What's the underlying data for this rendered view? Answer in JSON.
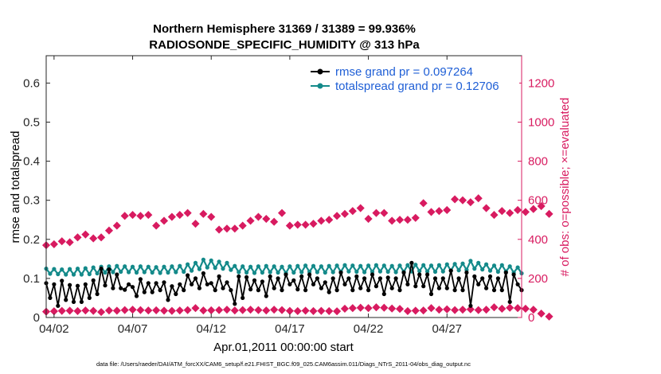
{
  "colors": {
    "rmse": "#000000",
    "spread": "#148a8a",
    "obs": "#d81b60",
    "legend_text": "#1f5fd6",
    "axis": "#262626",
    "grid": "#e8e8e8"
  },
  "chart_data": {
    "type": "line",
    "title_line1": "Northern Hemisphere 31369 / 31389 = 99.936%",
    "title_line2": "RADIOSONDE_SPECIFIC_HUMIDITY @ 313 hPa",
    "xlabel": "Apr.01,2011 00:00:00 start",
    "ylabel_left": "rmse and totalspread",
    "ylabel_right": "# of obs: o=possible; ×=evaluated",
    "footer": "data file: /Users/raeder/DAI/ATM_forcXX/CAM6_setup/f.e21.FHIST_BGC.f09_025.CAM6assim.011/Diags_NTrS_2011-04/obs_diag_output.nc",
    "x_range_days": [
      0.5,
      30.75
    ],
    "ylim_left": [
      0,
      0.67
    ],
    "ylim_right": [
      0,
      1340
    ],
    "x_ticks": [
      {
        "day": 1.0,
        "label": "04/02"
      },
      {
        "day": 6.0,
        "label": "04/07"
      },
      {
        "day": 11.0,
        "label": "04/12"
      },
      {
        "day": 16.0,
        "label": "04/17"
      },
      {
        "day": 21.0,
        "label": "04/22"
      },
      {
        "day": 26.0,
        "label": "04/27"
      }
    ],
    "y_ticks_left": [
      {
        "v": 0,
        "label": "0"
      },
      {
        "v": 0.1,
        "label": "0.1"
      },
      {
        "v": 0.2,
        "label": "0.2"
      },
      {
        "v": 0.3,
        "label": "0.3"
      },
      {
        "v": 0.4,
        "label": "0.4"
      },
      {
        "v": 0.5,
        "label": "0.5"
      },
      {
        "v": 0.6,
        "label": "0.6"
      }
    ],
    "y_ticks_right": [
      {
        "v": 0,
        "label": "0"
      },
      {
        "v": 200,
        "label": "200"
      },
      {
        "v": 400,
        "label": "400"
      },
      {
        "v": 600,
        "label": "600"
      },
      {
        "v": 800,
        "label": "800"
      },
      {
        "v": 1000,
        "label": "1000"
      },
      {
        "v": 1200,
        "label": "1200"
      }
    ],
    "series": [
      {
        "name": "rmse grand pr = 0.097264",
        "axis": "left",
        "x_start": 0.5,
        "x_step": 0.25,
        "values": [
          0.088,
          0.05,
          0.085,
          0.03,
          0.094,
          0.045,
          0.083,
          0.04,
          0.081,
          0.04,
          0.085,
          0.05,
          0.095,
          0.06,
          0.125,
          0.082,
          0.123,
          0.075,
          0.11,
          0.075,
          0.071,
          0.085,
          0.078,
          0.055,
          0.098,
          0.065,
          0.088,
          0.065,
          0.088,
          0.07,
          0.09,
          0.045,
          0.08,
          0.06,
          0.085,
          0.07,
          0.108,
          0.085,
          0.1,
          0.075,
          0.113,
          0.085,
          0.088,
          0.07,
          0.105,
          0.075,
          0.09,
          0.07,
          0.035,
          0.105,
          0.05,
          0.103,
          0.072,
          0.095,
          0.07,
          0.092,
          0.055,
          0.105,
          0.075,
          0.1,
          0.07,
          0.11,
          0.085,
          0.095,
          0.072,
          0.105,
          0.07,
          0.11,
          0.085,
          0.1,
          0.075,
          0.09,
          0.065,
          0.1,
          0.07,
          0.115,
          0.085,
          0.1,
          0.07,
          0.105,
          0.075,
          0.1,
          0.07,
          0.11,
          0.08,
          0.1,
          0.06,
          0.102,
          0.075,
          0.1,
          0.07,
          0.115,
          0.085,
          0.14,
          0.08,
          0.11,
          0.08,
          0.11,
          0.06,
          0.1,
          0.075,
          0.1,
          0.075,
          0.12,
          0.07,
          0.1,
          0.07,
          0.115,
          0.03,
          0.105,
          0.085,
          0.1,
          0.075,
          0.105,
          0.07,
          0.1,
          0.07,
          0.115,
          0.04,
          0.11,
          0.085,
          0.07
        ]
      },
      {
        "name": "totalspread grand pr = 0.12706",
        "axis": "left",
        "x_start": 0.5,
        "x_step": 0.25,
        "values": [
          0.125,
          0.112,
          0.124,
          0.111,
          0.123,
          0.11,
          0.124,
          0.11,
          0.125,
          0.11,
          0.126,
          0.111,
          0.128,
          0.113,
          0.13,
          0.115,
          0.131,
          0.116,
          0.132,
          0.117,
          0.131,
          0.116,
          0.13,
          0.115,
          0.131,
          0.116,
          0.13,
          0.115,
          0.129,
          0.114,
          0.13,
          0.115,
          0.131,
          0.116,
          0.132,
          0.117,
          0.136,
          0.12,
          0.14,
          0.124,
          0.148,
          0.128,
          0.146,
          0.127,
          0.143,
          0.125,
          0.14,
          0.122,
          0.132,
          0.116,
          0.131,
          0.115,
          0.13,
          0.114,
          0.131,
          0.115,
          0.132,
          0.116,
          0.131,
          0.115,
          0.13,
          0.114,
          0.131,
          0.115,
          0.132,
          0.116,
          0.133,
          0.117,
          0.132,
          0.116,
          0.131,
          0.115,
          0.132,
          0.116,
          0.133,
          0.117,
          0.134,
          0.118,
          0.133,
          0.117,
          0.132,
          0.116,
          0.133,
          0.117,
          0.134,
          0.118,
          0.133,
          0.117,
          0.132,
          0.116,
          0.133,
          0.117,
          0.134,
          0.118,
          0.135,
          0.119,
          0.134,
          0.118,
          0.133,
          0.117,
          0.134,
          0.118,
          0.136,
          0.12,
          0.137,
          0.121,
          0.138,
          0.122,
          0.145,
          0.125,
          0.14,
          0.123,
          0.136,
          0.12,
          0.133,
          0.117,
          0.134,
          0.118,
          0.131,
          0.115,
          0.128,
          0.113
        ]
      },
      {
        "name": "possible",
        "axis": "right",
        "x_start": 0.5,
        "x_step": 0.5,
        "values": [
          370,
          375,
          390,
          385,
          410,
          425,
          405,
          410,
          445,
          470,
          520,
          525,
          520,
          525,
          470,
          495,
          515,
          525,
          535,
          480,
          530,
          515,
          450,
          455,
          455,
          470,
          495,
          515,
          505,
          490,
          535,
          470,
          475,
          475,
          480,
          495,
          500,
          520,
          530,
          545,
          560,
          505,
          535,
          535,
          495,
          500,
          500,
          510,
          585,
          540,
          545,
          550,
          605,
          600,
          590,
          610,
          560,
          525,
          545,
          535,
          550,
          540,
          555,
          570,
          530
        ]
      },
      {
        "name": "evaluated",
        "axis": "right",
        "x_start": 0.5,
        "x_step": 0.5,
        "values": [
          30,
          32,
          34,
          35,
          33,
          36,
          34,
          28,
          36,
          35,
          38,
          40,
          38,
          36,
          37,
          35,
          34,
          36,
          38,
          48,
          36,
          37,
          38,
          40,
          36,
          38,
          40,
          38,
          36,
          40,
          38,
          34,
          33,
          35,
          33,
          34,
          33,
          32,
          45,
          48,
          50,
          48,
          52,
          50,
          46,
          44,
          33,
          35,
          36,
          48,
          40,
          42,
          38,
          40,
          42,
          38,
          40,
          52,
          45,
          50,
          48,
          45,
          40,
          20,
          5
        ]
      }
    ]
  }
}
